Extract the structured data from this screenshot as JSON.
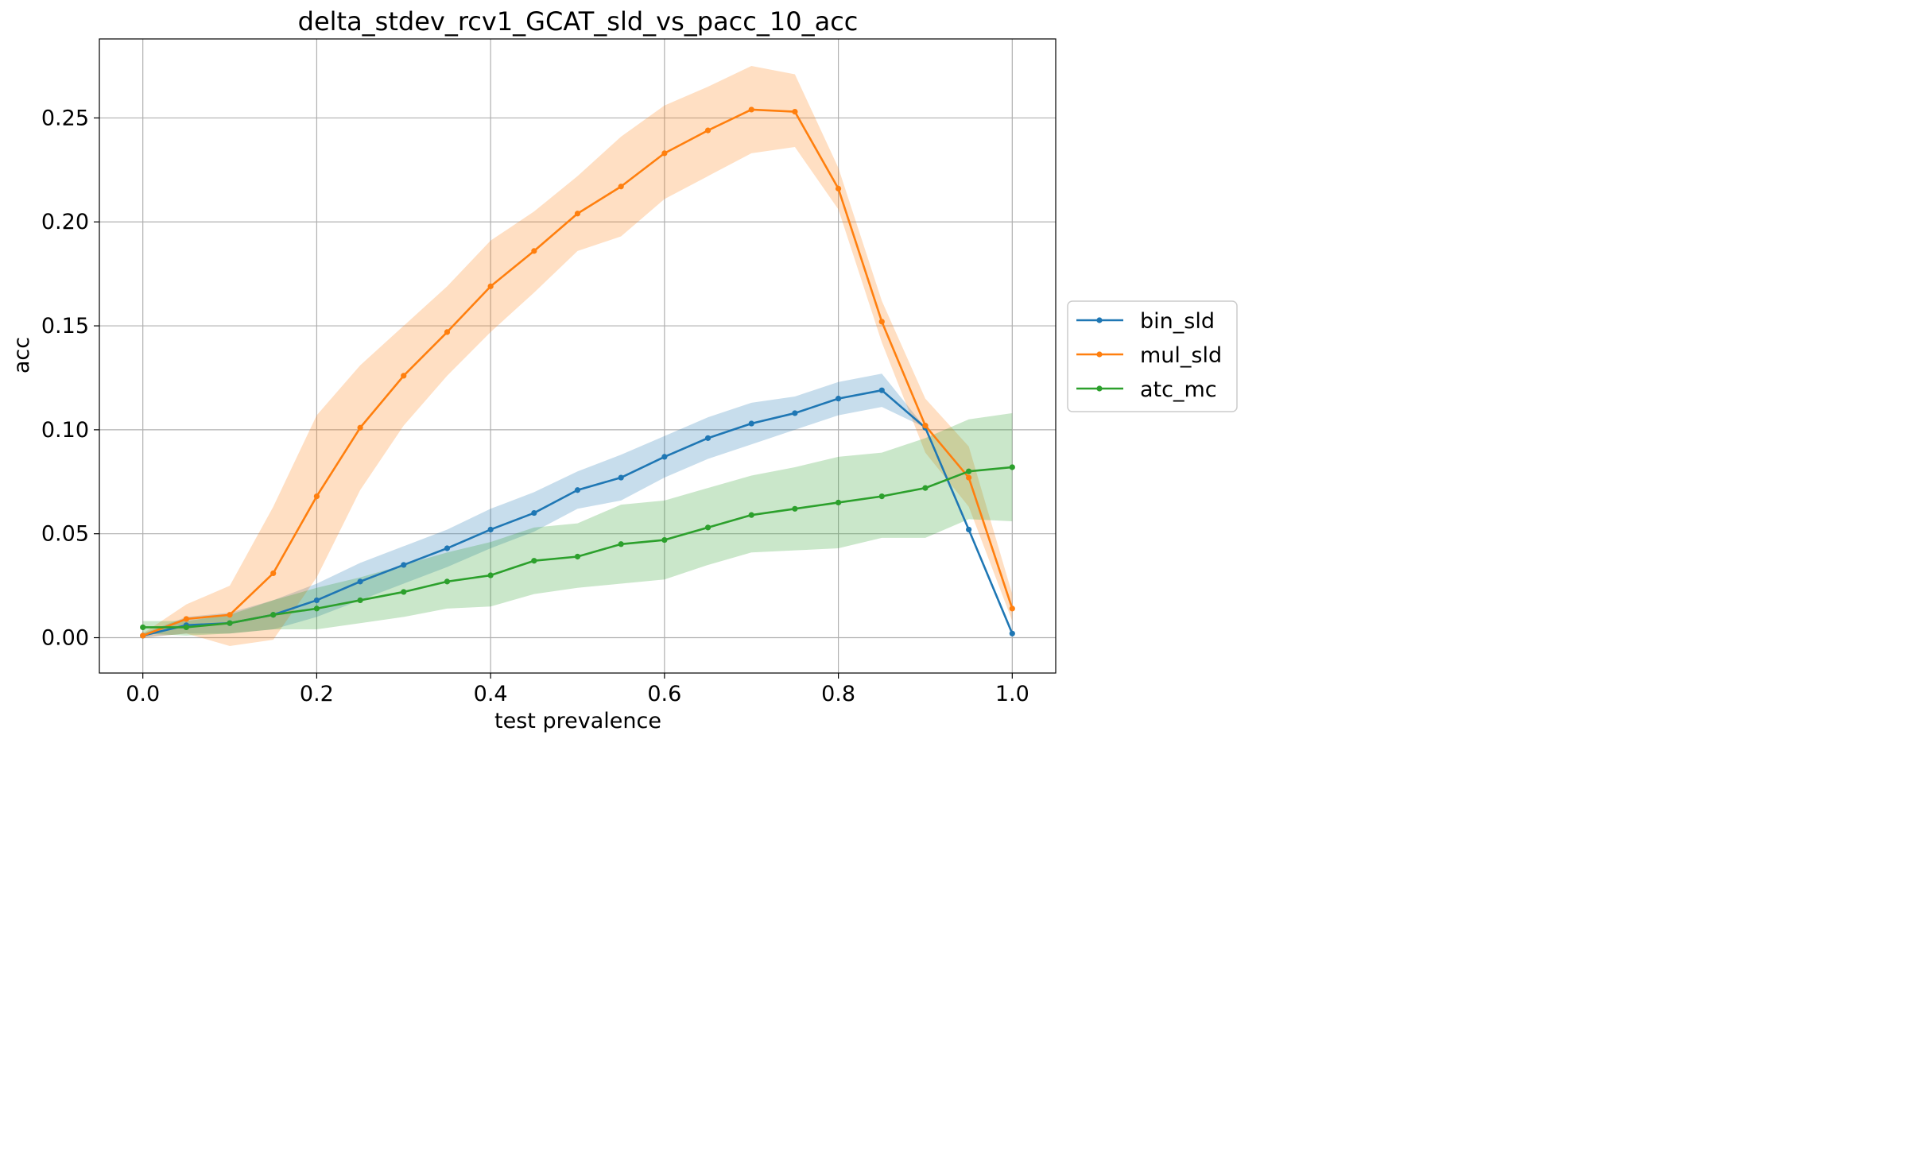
{
  "chart_data": {
    "type": "line",
    "title": "delta_stdev_rcv1_GCAT_sld_vs_pacc_10_acc",
    "xlabel": "test prevalence",
    "ylabel": "acc",
    "xlim": [
      -0.05,
      1.05
    ],
    "ylim": [
      -0.017,
      0.288
    ],
    "x_ticks": [
      0.0,
      0.2,
      0.4,
      0.6,
      0.8,
      1.0
    ],
    "x_tick_labels": [
      "0.0",
      "0.2",
      "0.4",
      "0.6",
      "0.8",
      "1.0"
    ],
    "y_ticks": [
      0.0,
      0.05,
      0.1,
      0.15,
      0.2,
      0.25
    ],
    "y_tick_labels": [
      "0.00",
      "0.05",
      "0.10",
      "0.15",
      "0.20",
      "0.25"
    ],
    "grid": true,
    "legend_position": "right-outside",
    "x": [
      0.0,
      0.05,
      0.1,
      0.15,
      0.2,
      0.25,
      0.3,
      0.35,
      0.4,
      0.45,
      0.5,
      0.55,
      0.6,
      0.65,
      0.7,
      0.75,
      0.8,
      0.85,
      0.9,
      0.95,
      1.0
    ],
    "series": [
      {
        "name": "bin_sld",
        "color": "#1f77b4",
        "values": [
          0.001,
          0.006,
          0.007,
          0.011,
          0.018,
          0.027,
          0.035,
          0.043,
          0.052,
          0.06,
          0.071,
          0.077,
          0.087,
          0.096,
          0.103,
          0.108,
          0.115,
          0.119,
          0.101,
          0.052,
          0.002
        ],
        "lower": [
          0.0,
          0.002,
          0.002,
          0.004,
          0.01,
          0.018,
          0.026,
          0.034,
          0.043,
          0.051,
          0.062,
          0.066,
          0.077,
          0.086,
          0.093,
          0.1,
          0.107,
          0.111,
          0.101,
          0.052,
          0.002
        ],
        "upper": [
          0.002,
          0.01,
          0.012,
          0.018,
          0.026,
          0.036,
          0.044,
          0.052,
          0.062,
          0.07,
          0.08,
          0.088,
          0.097,
          0.106,
          0.113,
          0.116,
          0.123,
          0.127,
          0.101,
          0.052,
          0.002
        ]
      },
      {
        "name": "mul_sld",
        "color": "#ff7f0e",
        "values": [
          0.001,
          0.009,
          0.011,
          0.031,
          0.068,
          0.101,
          0.126,
          0.147,
          0.169,
          0.186,
          0.204,
          0.217,
          0.233,
          0.244,
          0.254,
          0.253,
          0.216,
          0.152,
          0.102,
          0.077,
          0.014
        ],
        "lower": [
          0.0,
          0.002,
          -0.004,
          -0.001,
          0.029,
          0.071,
          0.102,
          0.126,
          0.147,
          0.166,
          0.186,
          0.193,
          0.211,
          0.222,
          0.233,
          0.236,
          0.206,
          0.142,
          0.089,
          0.063,
          0.008
        ],
        "upper": [
          0.002,
          0.016,
          0.025,
          0.063,
          0.107,
          0.131,
          0.15,
          0.169,
          0.191,
          0.205,
          0.222,
          0.241,
          0.256,
          0.265,
          0.275,
          0.271,
          0.226,
          0.162,
          0.115,
          0.092,
          0.021
        ]
      },
      {
        "name": "atc_mc",
        "color": "#2ca02c",
        "values": [
          0.005,
          0.005,
          0.007,
          0.011,
          0.014,
          0.018,
          0.022,
          0.027,
          0.03,
          0.037,
          0.039,
          0.045,
          0.047,
          0.053,
          0.059,
          0.062,
          0.065,
          0.068,
          0.072,
          0.08,
          0.082
        ],
        "lower": [
          0.002,
          0.001,
          0.002,
          0.004,
          0.004,
          0.007,
          0.01,
          0.014,
          0.015,
          0.021,
          0.024,
          0.026,
          0.028,
          0.035,
          0.041,
          0.042,
          0.043,
          0.048,
          0.048,
          0.057,
          0.056
        ],
        "upper": [
          0.008,
          0.008,
          0.011,
          0.018,
          0.024,
          0.029,
          0.035,
          0.041,
          0.046,
          0.053,
          0.055,
          0.064,
          0.066,
          0.072,
          0.078,
          0.082,
          0.087,
          0.089,
          0.096,
          0.105,
          0.108
        ]
      }
    ]
  }
}
